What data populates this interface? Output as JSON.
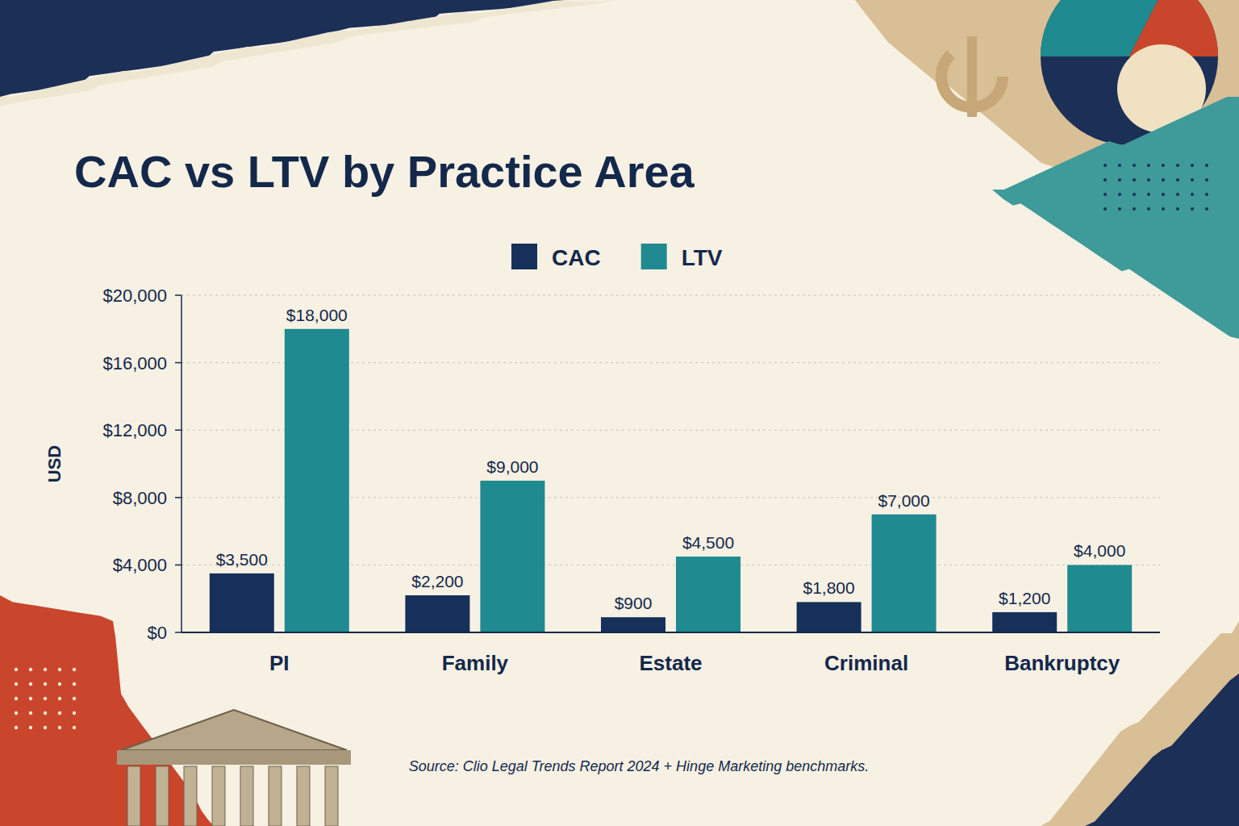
{
  "chart_data": {
    "type": "bar",
    "title": "CAC vs LTV by Practice Area",
    "y_label": "USD",
    "source": "Source: Clio Legal Trends Report 2024 + Hinge Marketing benchmarks.",
    "categories": [
      "PI",
      "Family",
      "Estate",
      "Criminal",
      "Bankruptcy"
    ],
    "series": [
      {
        "name": "CAC",
        "color": "#16305a",
        "values": [
          3500,
          2200,
          900,
          1800,
          1200
        ],
        "value_labels": [
          "$3,500",
          "$2,200",
          "$900",
          "$1,800",
          "$1,200"
        ]
      },
      {
        "name": "LTV",
        "color": "#1f8a8f",
        "values": [
          18000,
          9000,
          4500,
          7000,
          4000
        ],
        "value_labels": [
          "$18,000",
          "$9,000",
          "$4,500",
          "$7,000",
          "$4,000"
        ]
      }
    ],
    "ylim": [
      0,
      20000
    ],
    "yticks": [
      {
        "value": 0,
        "label": "$0"
      },
      {
        "value": 4000,
        "label": "$4,000"
      },
      {
        "value": 8000,
        "label": "$8,000"
      },
      {
        "value": 12000,
        "label": "$12,000"
      },
      {
        "value": 16000,
        "label": "$16,000"
      },
      {
        "value": 20000,
        "label": "$20,000"
      }
    ],
    "grid": true,
    "legend": "top",
    "data_labels": true
  }
}
